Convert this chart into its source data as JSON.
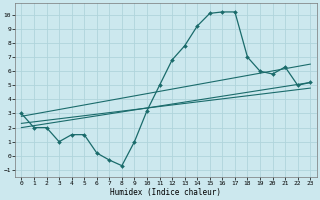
{
  "title": "",
  "xlabel": "Humidex (Indice chaleur)",
  "ylabel": "",
  "background_color": "#cce8ee",
  "grid_color": "#b0d4dc",
  "line_color": "#1a6b6b",
  "xlim": [
    -0.5,
    23.5
  ],
  "ylim": [
    -1.5,
    10.8
  ],
  "yticks": [
    -1,
    0,
    1,
    2,
    3,
    4,
    5,
    6,
    7,
    8,
    9,
    10
  ],
  "xticks": [
    0,
    1,
    2,
    3,
    4,
    5,
    6,
    7,
    8,
    9,
    10,
    11,
    12,
    13,
    14,
    15,
    16,
    17,
    18,
    19,
    20,
    21,
    22,
    23
  ],
  "line1_x": [
    0,
    1,
    2,
    3,
    4,
    5,
    6,
    7,
    8,
    9,
    10,
    11,
    12,
    13,
    14,
    15,
    16,
    17,
    18,
    19,
    20,
    21,
    22,
    23
  ],
  "line1_y": [
    3.0,
    2.0,
    2.0,
    1.0,
    1.5,
    1.5,
    0.2,
    -0.3,
    -0.7,
    1.0,
    3.2,
    5.0,
    6.8,
    7.8,
    9.2,
    10.1,
    10.2,
    10.2,
    7.0,
    6.0,
    5.8,
    6.3,
    5.0,
    5.2
  ],
  "line2_x": [
    0,
    23
  ],
  "line2_y": [
    2.8,
    6.5
  ],
  "line3_x": [
    0,
    23
  ],
  "line3_y": [
    2.3,
    4.8
  ],
  "line4_x": [
    0,
    23
  ],
  "line4_y": [
    2.0,
    5.2
  ]
}
